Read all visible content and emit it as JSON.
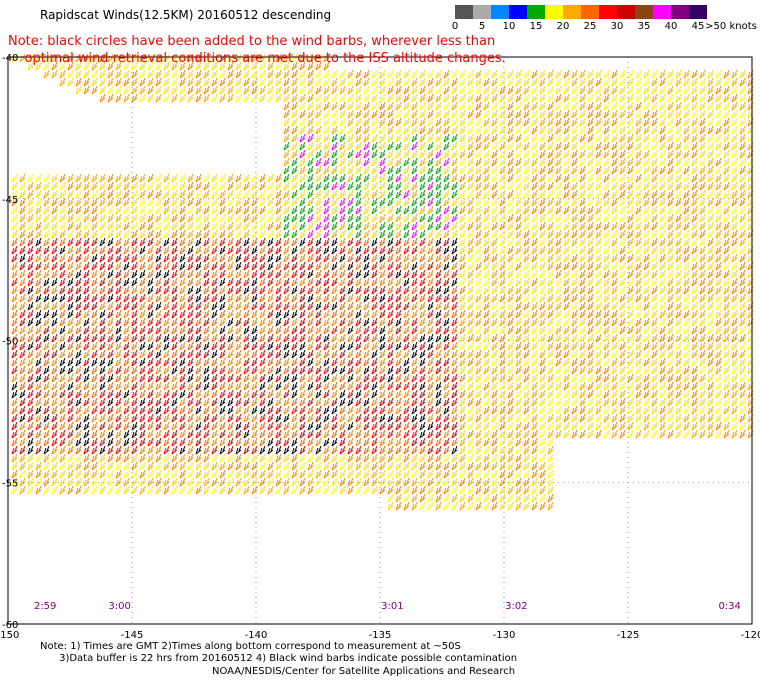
{
  "title": "Rapidscat Winds(12.5KM) 20160512 descending",
  "note": {
    "line1": "Note: black circles have been added to the wind barbs, wherever less than",
    "line2": "optimal wind retrieval conditions are met due to the ISS altitude changes."
  },
  "scale": {
    "unit_label": ">50 knots",
    "labels": [
      "0",
      "5",
      "10",
      "15",
      "20",
      "25",
      "30",
      "35",
      "40",
      "45"
    ],
    "colors": [
      "#555555",
      "#aaaaaa",
      "#0088ff",
      "#0000ff",
      "#00aa00",
      "#ffff00",
      "#ffaa00",
      "#ff6600",
      "#ff0000",
      "#cc0000",
      "#8b4513",
      "#ff00ff",
      "#800080",
      "#330066"
    ]
  },
  "axes": {
    "lat_labels": [
      "-40",
      "-45",
      "-50",
      "-55",
      "-60"
    ],
    "lon_labels": [
      "-150",
      "-145",
      "-140",
      "-135",
      "-130",
      "-125",
      "-120"
    ],
    "lat_range": [
      -60,
      -40
    ],
    "lon_range": [
      -150,
      -120
    ]
  },
  "times": [
    {
      "label": "2:59",
      "lon": -148.5
    },
    {
      "label": "3:00",
      "lon": -145.5
    },
    {
      "label": "3:01",
      "lon": -134.5
    },
    {
      "label": "3:02",
      "lon": -129.5
    },
    {
      "label": "0:34",
      "lon": -120.9
    }
  ],
  "footnote": {
    "line1": "Note: 1) Times are GMT 2)Times along bottom correspond to measurement at ~50S",
    "line2": "3)Data buffer is 22 hrs from 20160512 4) Black wind barbs indicate possible contamination"
  },
  "credit": "NOAA/NESDIS/Center for Satellite Applications and Research"
}
